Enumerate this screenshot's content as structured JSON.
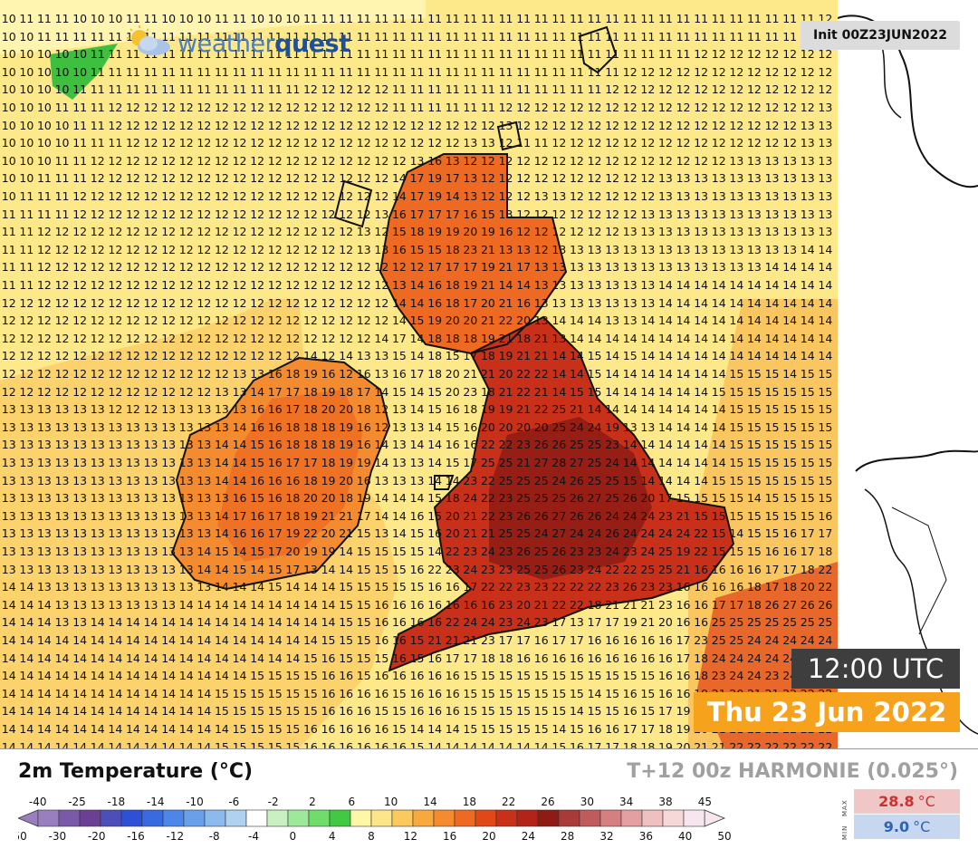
{
  "map": {
    "logo_text_light": "weather",
    "logo_text_bold": "quest",
    "init_label": "Init 00Z23JUN2022",
    "time_utc": "12:00 UTC",
    "date_label": "Thu 23 Jun 2022",
    "grid_columns": 47,
    "grid_rows": 42,
    "grid_values": [
      "10 11 11 11 10 10 10 11 11 10 10 10 11 11 10 10 10 11 11 11 11 11 11 11 11 11 11 11 11 11 11 11 11 11 11 11 11 11 11 11 11 11 11 11 11 11 12",
      "10 10 11 11 11 11 11 11 11 11 11 11 11 11 11 11 11 11 11 11 11 11 11 11 11 11 11 11 11 11 11 11 11 11 11 11 11 11 11 11 11 11 11 11 11 12 12",
      "10 10 10 10 10 11 11 11 11 11 11 11 11 11 11 11 11 11 11 11 11 11 11 11 11 11 11 11 11 11 11 11 11 11 11 11 11 11 11 12 12 12 12 12 12 12 12",
      "10 10 10 10 10 11 11 11 11 11 11 11 11 11 11 11 11 11 11 11 11 11 11 11 11 11 11 11 11 11 11 11 11 11 11 12 12 12 12 12 12 12 12 12 12 12 12",
      "10 10 10 10 11 11 11 11 11 11 11 11 11 11 11 11 11 12 12 12 12 12 11 11 11 11 11 11 11 11 11 11 11 11 12 12 12 12 12 12 12 12 12 12 12 12 12",
      "10 10 10 11 11 11 12 12 12 12 12 12 12 12 12 12 12 12 12 12 12 12 11 11 11 11 11 11 12 12 12 12 12 12 12 12 12 12 12 12 12 12 12 12 12 12 13",
      "10 10 10 10 11 11 12 12 12 12 12 12 12 12 12 12 12 12 12 12 12 12 12 12 12 12 12 12 13 12 12 12 12 12 12 12 12 12 12 12 12 12 12 12 12 13 13",
      "10 10 10 10 11 11 11 12 12 12 12 12 12 12 12 12 12 12 12 12 12 12 12 12 12 12 13 13 12 11 11 12 12 12 12 12 12 12 12 12 12 12 12 12 12 13 13",
      "10 10 10 11 11 12 12 12 12 12 12 12 12 12 12 12 12 12 12 12 12 12 12 13 16 13 12 12 12 12 12 12 12 12 12 12 12 12 12 12 12 13 13 13 13 13 13",
      "10 10 11 11 11 12 12 12 12 12 12 12 12 12 12 12 12 12 12 12 12 12 14 17 19 17 13 12 12 12 12 12 12 12 12 12 12 13 13 13 13 13 13 13 13 13 13",
      "10 11 11 11 12 12 12 12 12 12 12 12 12 12 12 12 12 12 12 12 12 12 14 17 19 14 13 12 12 12 13 13 12 12 12 12 12 13 13 13 13 13 13 13 13 13 13",
      "11 11 11 11 12 12 12 12 12 12 12 12 12 12 12 12 12 12 12 12 12 13 16 17 17 17 16 15 13 12 12 12 12 12 12 12 13 13 13 13 13 13 13 13 13 13 13",
      "11 11 12 12 12 12 12 12 12 12 12 12 12 12 12 12 12 12 12 12 13 12 15 18 19 19 20 19 16 12 12 12 12 12 12 13 13 13 13 13 13 13 13 13 13 13 13",
      "11 11 12 12 12 12 12 12 12 12 12 12 12 12 12 12 12 12 12 12 13 13 16 15 15 18 23 21 13 13 12 13 13 13 13 13 13 13 13 13 13 13 13 13 13 14 14",
      "11 11 12 12 12 12 12 12 12 12 12 12 12 12 12 12 12 12 12 12 12 12 12 12 17 17 17 19 21 17 13 13 13 13 13 13 13 13 13 13 13 13 13 14 14 14 14",
      "11 11 12 12 12 12 12 12 12 12 12 12 12 12 12 12 12 12 12 12 12 12 13 14 16 18 19 21 14 14 13 13 13 13 13 13 13 14 14 14 14 14 14 14 14 14 14",
      "12 12 12 12 12 12 12 12 12 12 12 12 12 12 12 12 12 12 12 12 12 12 14 14 16 18 17 20 21 16 13 13 13 13 13 13 13 14 14 14 14 14 14 14 14 14 14",
      "12 12 12 12 12 12 12 12 12 12 12 12 12 12 12 12 12 12 12 12 12 12 14 15 19 20 20 21 22 20 13 14 14 14 13 13 14 14 14 14 14 14 14 14 14 14 14",
      "12 12 12 12 12 12 12 12 12 12 12 12 12 12 12 12 12 12 12 12 12 14 17 14 18 18 18 19 21 18 21 13 14 14 14 14 14 14 14 14 14 14 14 14 14 14 14",
      "12 12 12 12 12 12 12 12 12 12 12 12 12 12 12 12 12 14 12 14 13 13 15 14 18 15 17 18 19 21 21 14 14 15 14 15 14 14 14 14 14 14 14 14 14 14 14",
      "12 12 12 12 12 12 12 12 12 12 12 12 12 13 13 16 18 19 16 12 16 13 16 17 18 20 21 21 20 22 22 14 14 15 14 14 14 14 14 14 14 15 15 15 14 15 15",
      "12 12 12 12 12 12 12 12 12 12 12 12 13 13 14 17 17 18 19 18 17 14 15 14 15 20 23 18 21 22 21 14 15 15 14 14 14 14 14 14 15 15 15 15 15 15 15",
      "13 13 13 13 13 13 12 12 12 13 13 13 13 13 16 16 17 18 20 20 18 12 13 14 15 16 18 19 19 21 22 25 21 14 14 14 14 14 14 14 14 15 15 15 15 15 15",
      "13 13 13 13 13 13 13 13 13 13 13 13 13 14 16 16 18 18 18 19 16 12 13 13 14 15 16 20 20 20 20 25 24 24 19 13 13 14 14 14 14 15 15 15 15 15 15",
      "13 13 13 13 13 13 13 13 13 13 13 13 14 14 15 16 18 18 18 19 16 14 13 14 14 16 16 22 22 23 26 26 25 25 23 14 14 14 14 14 14 15 15 15 15 15 15",
      "13 13 13 13 13 13 13 13 13 13 13 13 14 14 15 16 17 17 18 19 19 14 13 13 14 15 17 25 25 21 27 28 27 25 24 14 14 14 14 14 14 15 15 15 15 15 15",
      "13 13 13 13 13 13 13 13 13 13 13 13 14 14 16 16 16 18 19 20 16 13 13 13 14 14 23 22 25 25 25 24 26 25 25 15 14 14 14 14 15 15 15 15 15 15 15",
      "13 13 13 13 13 13 13 13 13 13 13 13 13 16 15 16 18 20 20 18 19 14 14 14 15 18 24 22 23 25 25 25 26 27 25 26 20 17 15 15 15 15 14 15 15 15 15",
      "13 13 13 13 13 13 13 13 13 13 13 13 14 17 16 17 18 19 21 21 17 14 14 16 15 20 21 22 23 26 26 27 26 26 24 24 24 23 21 15 15 15 15 15 15 15 16",
      "13 13 13 13 13 13 13 13 13 13 13 13 14 16 16 17 19 22 20 21 15 13 14 15 16 20 21 21 25 25 24 27 24 24 26 24 24 24 24 22 15 14 15 15 16 17 17",
      "13 13 13 13 13 13 13 13 13 13 13 14 15 14 15 17 20 19 19 14 15 15 15 15 14 22 23 24 23 26 25 26 23 23 24 23 24 25 19 22 15 15 15 16 16 17 18",
      "13 13 13 13 13 13 13 13 13 13 13 14 14 15 14 15 17 13 14 14 15 15 15 16 22 23 24 23 23 25 25 26 23 24 22 22 25 25 21 16 16 16 16 17 17 18 22",
      "14 14 13 13 13 13 13 13 13 13 13 13 14 14 14 15 14 14 14 15 15 15 15 15 16 16 17 22 22 23 23 22 22 22 23 26 23 23 16 16 16 16 18 17 18 20 22",
      "14 14 14 13 13 13 13 13 13 13 14 14 14 14 14 14 14 14 14 15 15 16 16 16 16 16 16 16 23 20 21 22 22 18 21 21 21 23 16 16 17 17 18 26 27 26 26",
      "14 14 14 13 13 14 14 14 14 14 14 14 14 14 14 14 14 14 14 15 15 16 16 16 16 22 24 24 23 24 23 17 13 17 17 19 21 20 16 16 25 25 25 25 25 25 25",
      "14 14 14 14 14 14 14 14 14 14 14 14 14 14 14 14 14 14 15 15 15 16 16 15 21 21 21 23 17 17 16 17 17 16 16 16 16 16 17 23 25 25 24 24 24 24 24",
      "14 14 14 14 14 14 14 14 14 14 14 14 14 14 14 14 14 15 16 15 15 15 16 15 16 17 17 18 18 16 16 16 16 16 16 16 16 16 17 18 24 24 24 24 24 24 24",
      "14 14 14 14 14 14 14 14 14 14 14 14 14 14 15 15 15 15 16 16 15 16 16 16 16 16 15 15 15 15 15 15 15 15 15 15 15 16 16 18 23 24 24 23 24 24 24",
      "14 14 14 14 14 14 14 14 14 14 14 14 15 15 15 15 15 15 16 16 16 16 15 16 16 16 15 15 15 15 15 15 15 14 15 16 15 16 16 19 21 20 21 21 22 22 22",
      "14 14 14 14 14 14 14 14 14 14 14 14 15 15 15 15 15 15 16 16 16 15 15 16 16 16 15 15 15 15 15 15 14 15 15 16 15 17 19 20 20 21 21 21 21 21 21",
      "14 14 14 14 14 14 14 14 14 14 14 14 14 15 15 15 15 16 16 16 16 16 15 14 14 14 15 15 15 15 15 14 15 16 16 17 17 18 19 20 21 21 21 22 22 22 22",
      "14 14 14 14 14 14 14 14 14 14 14 14 15 15 15 15 15 16 16 16 16 16 16 15 14 14 14 14 14 14 14 15 16 17 17 18 18 19 20 21 21 22 22 22 22 22 22"
    ],
    "icons": [
      "sun-cloud-logo-icon",
      "coastline-map"
    ],
    "colors": {
      "cool_green": "#3fbf3f",
      "pale_yellow": "#fde98a",
      "light_orange": "#fbbf55",
      "orange": "#f58b2f",
      "red_orange": "#e9512a",
      "dark_red": "#b52a1e",
      "darkest_red": "#8e1b14"
    }
  },
  "footer": {
    "variable_title": "2m Temperature (°C)",
    "model_title": "T+12  00z HARMONIE (0.025°)",
    "colorbar": {
      "top_labels": [
        "-40",
        "-25",
        "-18",
        "-14",
        "-10",
        "-6",
        "-2",
        "2",
        "6",
        "10",
        "14",
        "18",
        "22",
        "26",
        "30",
        "34",
        "38",
        "45"
      ],
      "bottom_labels": [
        "-50",
        "-30",
        "-20",
        "-16",
        "-12",
        "-8",
        "-4",
        "0",
        "4",
        "8",
        "12",
        "16",
        "20",
        "24",
        "28",
        "32",
        "36",
        "40",
        "50"
      ],
      "colors": [
        "#9a7fc0",
        "#7a5aa8",
        "#6a3f94",
        "#4c4fb8",
        "#2e50d6",
        "#3a6ae0",
        "#4c86e8",
        "#6aa0ea",
        "#8cbaee",
        "#aed2f0",
        "#ffffff",
        "#c8f0c0",
        "#9ee89a",
        "#6fdc6c",
        "#42c842",
        "#fff7a8",
        "#fde58a",
        "#fbc95e",
        "#f8a93c",
        "#f58b2f",
        "#ee6a22",
        "#e04818",
        "#c9301a",
        "#b22418",
        "#8e1b14",
        "#a83a3a",
        "#bf5b5b",
        "#d58080",
        "#e4a0a0",
        "#efc0c0",
        "#f7d8d8",
        "#f7e6ee"
      ]
    },
    "max_tag": "MAX",
    "min_tag": "MIN",
    "max_value": "28.8",
    "min_value": "9.0",
    "unit": "°C"
  }
}
